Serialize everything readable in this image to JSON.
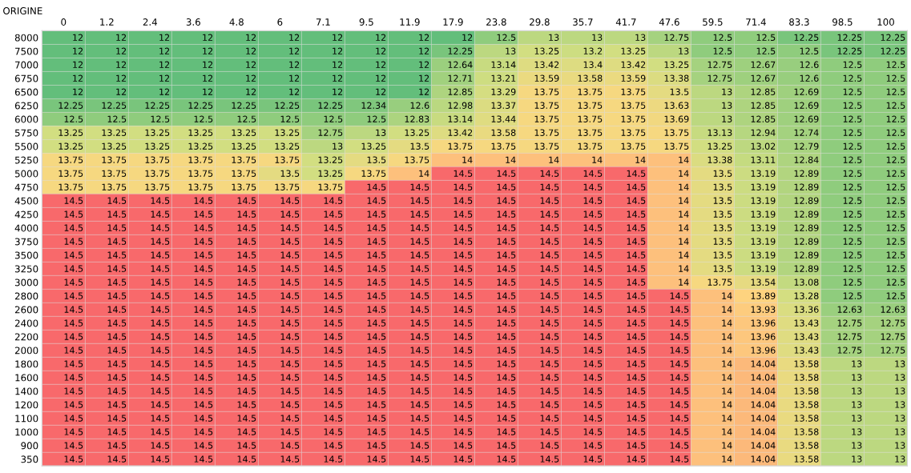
{
  "chart_data": {
    "type": "heatmap",
    "title": "ORIGINE",
    "categories": [
      "0",
      "1.2",
      "2.4",
      "3.6",
      "4.8",
      "6",
      "7.1",
      "9.5",
      "11.9",
      "17.9",
      "23.8",
      "29.8",
      "35.7",
      "41.7",
      "47.6",
      "59.5",
      "71.4",
      "83.3",
      "98.5",
      "100"
    ],
    "y_categories": [
      "8000",
      "7500",
      "7000",
      "6750",
      "6500",
      "6250",
      "6000",
      "5750",
      "5500",
      "5250",
      "5000",
      "4750",
      "4500",
      "4250",
      "4000",
      "3750",
      "3500",
      "3250",
      "3000",
      "2800",
      "2600",
      "2400",
      "2200",
      "2000",
      "1800",
      "1600",
      "1400",
      "1200",
      "1100",
      "1000",
      "900",
      "350"
    ],
    "colors": [
      "#63be7b",
      "#9acf7e",
      "#d2de81",
      "#fed680",
      "#f8696b"
    ],
    "data_labels": true,
    "grid": true,
    "cells": [
      [
        12,
        12,
        12,
        12,
        12,
        12,
        12,
        12,
        12,
        12,
        12.5,
        13,
        13,
        13,
        12.75,
        12.5,
        12.5,
        12.25,
        12.25,
        12.25
      ],
      [
        12,
        12,
        12,
        12,
        12,
        12,
        12,
        12,
        12,
        12.25,
        13,
        13.25,
        13.2,
        13.25,
        13,
        12.5,
        12.5,
        12.5,
        12.25,
        12.25
      ],
      [
        12,
        12,
        12,
        12,
        12,
        12,
        12,
        12,
        12,
        12.64,
        13.14,
        13.42,
        13.4,
        13.42,
        13.25,
        12.75,
        12.67,
        12.6,
        12.5,
        12.5
      ],
      [
        12,
        12,
        12,
        12,
        12,
        12,
        12,
        12,
        12,
        12.71,
        13.21,
        13.59,
        13.58,
        13.59,
        13.38,
        12.75,
        12.67,
        12.6,
        12.5,
        12.5
      ],
      [
        12,
        12,
        12,
        12,
        12,
        12,
        12,
        12,
        12,
        12.85,
        13.29,
        13.75,
        13.75,
        13.75,
        13.5,
        13,
        12.85,
        12.69,
        12.5,
        12.5
      ],
      [
        12.25,
        12.25,
        12.25,
        12.25,
        12.25,
        12.25,
        12.25,
        12.34,
        12.6,
        12.98,
        13.37,
        13.75,
        13.75,
        13.75,
        13.63,
        13,
        12.85,
        12.69,
        12.5,
        12.5
      ],
      [
        12.5,
        12.5,
        12.5,
        12.5,
        12.5,
        12.5,
        12.5,
        12.5,
        12.83,
        13.14,
        13.44,
        13.75,
        13.75,
        13.75,
        13.69,
        13,
        12.85,
        12.69,
        12.5,
        12.5
      ],
      [
        13.25,
        13.25,
        13.25,
        13.25,
        13.25,
        13.25,
        12.75,
        13,
        13.25,
        13.42,
        13.58,
        13.75,
        13.75,
        13.75,
        13.75,
        13.13,
        12.94,
        12.74,
        12.5,
        12.5
      ],
      [
        13.25,
        13.25,
        13.25,
        13.25,
        13.25,
        13.25,
        13,
        13.25,
        13.5,
        13.75,
        13.75,
        13.75,
        13.75,
        13.75,
        13.75,
        13.25,
        13.02,
        12.79,
        12.5,
        12.5
      ],
      [
        13.75,
        13.75,
        13.75,
        13.75,
        13.75,
        13.75,
        13.25,
        13.5,
        13.75,
        14,
        14,
        14,
        14,
        14,
        14,
        13.38,
        13.11,
        12.84,
        12.5,
        12.5
      ],
      [
        13.75,
        13.75,
        13.75,
        13.75,
        13.75,
        13.5,
        13.25,
        13.75,
        14,
        14.5,
        14.5,
        14.5,
        14.5,
        14.5,
        14,
        13.5,
        13.19,
        12.89,
        12.5,
        12.5
      ],
      [
        13.75,
        13.75,
        13.75,
        13.75,
        13.75,
        13.75,
        13.75,
        14.5,
        14.5,
        14.5,
        14.5,
        14.5,
        14.5,
        14.5,
        14,
        13.5,
        13.19,
        12.89,
        12.5,
        12.5
      ],
      [
        14.5,
        14.5,
        14.5,
        14.5,
        14.5,
        14.5,
        14.5,
        14.5,
        14.5,
        14.5,
        14.5,
        14.5,
        14.5,
        14.5,
        14,
        13.5,
        13.19,
        12.89,
        12.5,
        12.5
      ],
      [
        14.5,
        14.5,
        14.5,
        14.5,
        14.5,
        14.5,
        14.5,
        14.5,
        14.5,
        14.5,
        14.5,
        14.5,
        14.5,
        14.5,
        14,
        13.5,
        13.19,
        12.89,
        12.5,
        12.5
      ],
      [
        14.5,
        14.5,
        14.5,
        14.5,
        14.5,
        14.5,
        14.5,
        14.5,
        14.5,
        14.5,
        14.5,
        14.5,
        14.5,
        14.5,
        14,
        13.5,
        13.19,
        12.89,
        12.5,
        12.5
      ],
      [
        14.5,
        14.5,
        14.5,
        14.5,
        14.5,
        14.5,
        14.5,
        14.5,
        14.5,
        14.5,
        14.5,
        14.5,
        14.5,
        14.5,
        14,
        13.5,
        13.19,
        12.89,
        12.5,
        12.5
      ],
      [
        14.5,
        14.5,
        14.5,
        14.5,
        14.5,
        14.5,
        14.5,
        14.5,
        14.5,
        14.5,
        14.5,
        14.5,
        14.5,
        14.5,
        14,
        13.5,
        13.19,
        12.89,
        12.5,
        12.5
      ],
      [
        14.5,
        14.5,
        14.5,
        14.5,
        14.5,
        14.5,
        14.5,
        14.5,
        14.5,
        14.5,
        14.5,
        14.5,
        14.5,
        14.5,
        14,
        13.5,
        13.19,
        12.89,
        12.5,
        12.5
      ],
      [
        14.5,
        14.5,
        14.5,
        14.5,
        14.5,
        14.5,
        14.5,
        14.5,
        14.5,
        14.5,
        14.5,
        14.5,
        14.5,
        14.5,
        14,
        13.75,
        13.54,
        13.08,
        12.5,
        12.5
      ],
      [
        14.5,
        14.5,
        14.5,
        14.5,
        14.5,
        14.5,
        14.5,
        14.5,
        14.5,
        14.5,
        14.5,
        14.5,
        14.5,
        14.5,
        14.5,
        14,
        13.89,
        13.28,
        12.5,
        12.5
      ],
      [
        14.5,
        14.5,
        14.5,
        14.5,
        14.5,
        14.5,
        14.5,
        14.5,
        14.5,
        14.5,
        14.5,
        14.5,
        14.5,
        14.5,
        14.5,
        14,
        13.93,
        13.36,
        12.63,
        12.63
      ],
      [
        14.5,
        14.5,
        14.5,
        14.5,
        14.5,
        14.5,
        14.5,
        14.5,
        14.5,
        14.5,
        14.5,
        14.5,
        14.5,
        14.5,
        14.5,
        14,
        13.96,
        13.43,
        12.75,
        12.75
      ],
      [
        14.5,
        14.5,
        14.5,
        14.5,
        14.5,
        14.5,
        14.5,
        14.5,
        14.5,
        14.5,
        14.5,
        14.5,
        14.5,
        14.5,
        14.5,
        14,
        13.96,
        13.43,
        12.75,
        12.75
      ],
      [
        14.5,
        14.5,
        14.5,
        14.5,
        14.5,
        14.5,
        14.5,
        14.5,
        14.5,
        14.5,
        14.5,
        14.5,
        14.5,
        14.5,
        14.5,
        14,
        13.96,
        13.43,
        12.75,
        12.75
      ],
      [
        14.5,
        14.5,
        14.5,
        14.5,
        14.5,
        14.5,
        14.5,
        14.5,
        14.5,
        14.5,
        14.5,
        14.5,
        14.5,
        14.5,
        14.5,
        14,
        14.04,
        13.58,
        13,
        13
      ],
      [
        14.5,
        14.5,
        14.5,
        14.5,
        14.5,
        14.5,
        14.5,
        14.5,
        14.5,
        14.5,
        14.5,
        14.5,
        14.5,
        14.5,
        14.5,
        14,
        14.04,
        13.58,
        13,
        13
      ],
      [
        14.5,
        14.5,
        14.5,
        14.5,
        14.5,
        14.5,
        14.5,
        14.5,
        14.5,
        14.5,
        14.5,
        14.5,
        14.5,
        14.5,
        14.5,
        14,
        14.04,
        13.58,
        13,
        13
      ],
      [
        14.5,
        14.5,
        14.5,
        14.5,
        14.5,
        14.5,
        14.5,
        14.5,
        14.5,
        14.5,
        14.5,
        14.5,
        14.5,
        14.5,
        14.5,
        14,
        14.04,
        13.58,
        13,
        13
      ],
      [
        14.5,
        14.5,
        14.5,
        14.5,
        14.5,
        14.5,
        14.5,
        14.5,
        14.5,
        14.5,
        14.5,
        14.5,
        14.5,
        14.5,
        14.5,
        14,
        14.04,
        13.58,
        13,
        13
      ],
      [
        14.5,
        14.5,
        14.5,
        14.5,
        14.5,
        14.5,
        14.5,
        14.5,
        14.5,
        14.5,
        14.5,
        14.5,
        14.5,
        14.5,
        14.5,
        14,
        14.04,
        13.58,
        13,
        13
      ],
      [
        14.5,
        14.5,
        14.5,
        14.5,
        14.5,
        14.5,
        14.5,
        14.5,
        14.5,
        14.5,
        14.5,
        14.5,
        14.5,
        14.5,
        14.5,
        14,
        14.04,
        13.58,
        13,
        13
      ],
      [
        14.5,
        14.5,
        14.5,
        14.5,
        14.5,
        14.5,
        14.5,
        14.5,
        14.5,
        14.5,
        14.5,
        14.5,
        14.5,
        14.5,
        14.5,
        14,
        14.04,
        13.58,
        13,
        13
      ]
    ]
  }
}
